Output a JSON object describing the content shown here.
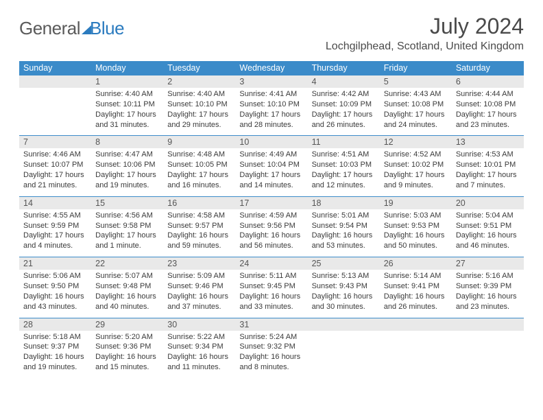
{
  "logo": {
    "text_left": "General",
    "text_right": "Blue"
  },
  "title": "July 2024",
  "location": "Lochgilphead, Scotland, United Kingdom",
  "colors": {
    "header_blue": "#3b8bc9",
    "logo_blue": "#2b7bbf",
    "daynum_bg": "#e9e9e9",
    "text_gray": "#4a4a4a",
    "row_border": "#3b8bc9"
  },
  "typography": {
    "title_fontsize": 32,
    "location_fontsize": 16,
    "header_fontsize": 12.5,
    "cell_fontsize": 11
  },
  "day_names": [
    "Sunday",
    "Monday",
    "Tuesday",
    "Wednesday",
    "Thursday",
    "Friday",
    "Saturday"
  ],
  "weeks": [
    {
      "nums": [
        "",
        "1",
        "2",
        "3",
        "4",
        "5",
        "6"
      ],
      "cells": [
        null,
        {
          "sunrise": "4:40 AM",
          "sunset": "10:11 PM",
          "daylight": "17 hours and 31 minutes."
        },
        {
          "sunrise": "4:40 AM",
          "sunset": "10:10 PM",
          "daylight": "17 hours and 29 minutes."
        },
        {
          "sunrise": "4:41 AM",
          "sunset": "10:10 PM",
          "daylight": "17 hours and 28 minutes."
        },
        {
          "sunrise": "4:42 AM",
          "sunset": "10:09 PM",
          "daylight": "17 hours and 26 minutes."
        },
        {
          "sunrise": "4:43 AM",
          "sunset": "10:08 PM",
          "daylight": "17 hours and 24 minutes."
        },
        {
          "sunrise": "4:44 AM",
          "sunset": "10:08 PM",
          "daylight": "17 hours and 23 minutes."
        }
      ]
    },
    {
      "nums": [
        "7",
        "8",
        "9",
        "10",
        "11",
        "12",
        "13"
      ],
      "cells": [
        {
          "sunrise": "4:46 AM",
          "sunset": "10:07 PM",
          "daylight": "17 hours and 21 minutes."
        },
        {
          "sunrise": "4:47 AM",
          "sunset": "10:06 PM",
          "daylight": "17 hours and 19 minutes."
        },
        {
          "sunrise": "4:48 AM",
          "sunset": "10:05 PM",
          "daylight": "17 hours and 16 minutes."
        },
        {
          "sunrise": "4:49 AM",
          "sunset": "10:04 PM",
          "daylight": "17 hours and 14 minutes."
        },
        {
          "sunrise": "4:51 AM",
          "sunset": "10:03 PM",
          "daylight": "17 hours and 12 minutes."
        },
        {
          "sunrise": "4:52 AM",
          "sunset": "10:02 PM",
          "daylight": "17 hours and 9 minutes."
        },
        {
          "sunrise": "4:53 AM",
          "sunset": "10:01 PM",
          "daylight": "17 hours and 7 minutes."
        }
      ]
    },
    {
      "nums": [
        "14",
        "15",
        "16",
        "17",
        "18",
        "19",
        "20"
      ],
      "cells": [
        {
          "sunrise": "4:55 AM",
          "sunset": "9:59 PM",
          "daylight": "17 hours and 4 minutes."
        },
        {
          "sunrise": "4:56 AM",
          "sunset": "9:58 PM",
          "daylight": "17 hours and 1 minute."
        },
        {
          "sunrise": "4:58 AM",
          "sunset": "9:57 PM",
          "daylight": "16 hours and 59 minutes."
        },
        {
          "sunrise": "4:59 AM",
          "sunset": "9:56 PM",
          "daylight": "16 hours and 56 minutes."
        },
        {
          "sunrise": "5:01 AM",
          "sunset": "9:54 PM",
          "daylight": "16 hours and 53 minutes."
        },
        {
          "sunrise": "5:03 AM",
          "sunset": "9:53 PM",
          "daylight": "16 hours and 50 minutes."
        },
        {
          "sunrise": "5:04 AM",
          "sunset": "9:51 PM",
          "daylight": "16 hours and 46 minutes."
        }
      ]
    },
    {
      "nums": [
        "21",
        "22",
        "23",
        "24",
        "25",
        "26",
        "27"
      ],
      "cells": [
        {
          "sunrise": "5:06 AM",
          "sunset": "9:50 PM",
          "daylight": "16 hours and 43 minutes."
        },
        {
          "sunrise": "5:07 AM",
          "sunset": "9:48 PM",
          "daylight": "16 hours and 40 minutes."
        },
        {
          "sunrise": "5:09 AM",
          "sunset": "9:46 PM",
          "daylight": "16 hours and 37 minutes."
        },
        {
          "sunrise": "5:11 AM",
          "sunset": "9:45 PM",
          "daylight": "16 hours and 33 minutes."
        },
        {
          "sunrise": "5:13 AM",
          "sunset": "9:43 PM",
          "daylight": "16 hours and 30 minutes."
        },
        {
          "sunrise": "5:14 AM",
          "sunset": "9:41 PM",
          "daylight": "16 hours and 26 minutes."
        },
        {
          "sunrise": "5:16 AM",
          "sunset": "9:39 PM",
          "daylight": "16 hours and 23 minutes."
        }
      ]
    },
    {
      "nums": [
        "28",
        "29",
        "30",
        "31",
        "",
        "",
        ""
      ],
      "cells": [
        {
          "sunrise": "5:18 AM",
          "sunset": "9:37 PM",
          "daylight": "16 hours and 19 minutes."
        },
        {
          "sunrise": "5:20 AM",
          "sunset": "9:36 PM",
          "daylight": "16 hours and 15 minutes."
        },
        {
          "sunrise": "5:22 AM",
          "sunset": "9:34 PM",
          "daylight": "16 hours and 11 minutes."
        },
        {
          "sunrise": "5:24 AM",
          "sunset": "9:32 PM",
          "daylight": "16 hours and 8 minutes."
        },
        null,
        null,
        null
      ]
    }
  ],
  "labels": {
    "sunrise": "Sunrise:",
    "sunset": "Sunset:",
    "daylight": "Daylight:"
  }
}
